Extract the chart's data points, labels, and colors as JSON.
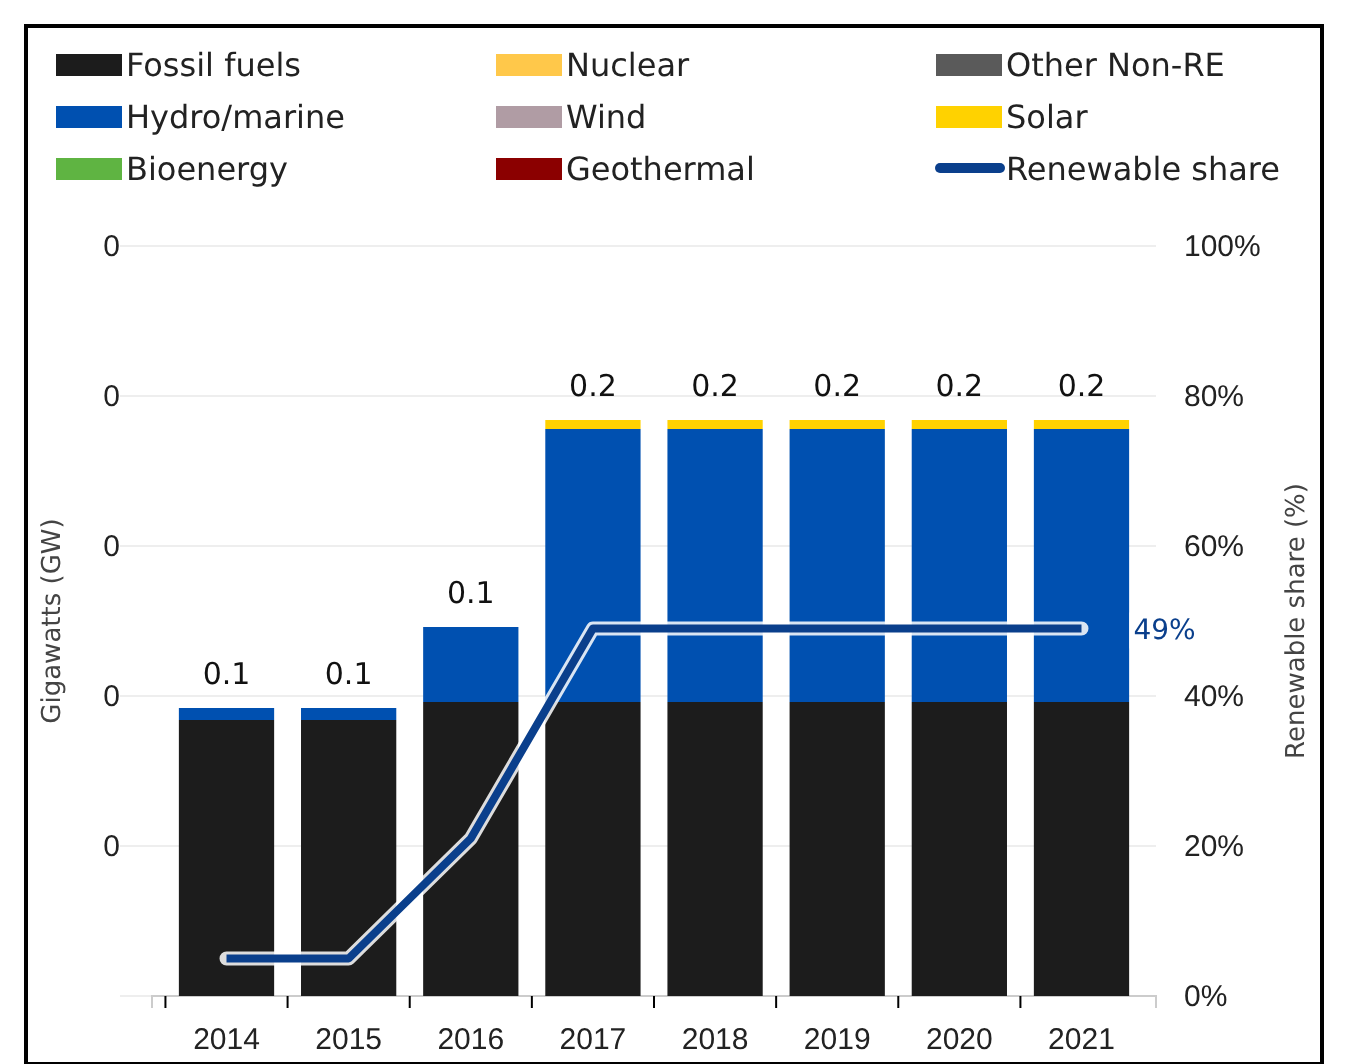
{
  "chart_data": {
    "type": "bar",
    "stacked": true,
    "categories": [
      "2014",
      "2015",
      "2016",
      "2017",
      "2018",
      "2019",
      "2020",
      "2021"
    ],
    "series": [
      {
        "name": "Fossil fuels",
        "color": "#1c1c1c",
        "values": [
          0.092,
          0.092,
          0.098,
          0.098,
          0.098,
          0.098,
          0.098,
          0.098
        ]
      },
      {
        "name": "Nuclear",
        "color": "#ffc84a",
        "values": [
          0,
          0,
          0,
          0,
          0,
          0,
          0,
          0
        ]
      },
      {
        "name": "Other Non-RE",
        "color": "#5a5a5a",
        "values": [
          0,
          0,
          0,
          0,
          0,
          0,
          0,
          0
        ]
      },
      {
        "name": "Hydro/marine",
        "color": "#0050b0",
        "values": [
          0.004,
          0.004,
          0.025,
          0.091,
          0.091,
          0.091,
          0.091,
          0.091
        ]
      },
      {
        "name": "Wind",
        "color": "#b09ca4",
        "values": [
          0,
          0,
          0,
          0,
          0,
          0,
          0,
          0
        ]
      },
      {
        "name": "Solar",
        "color": "#ffd200",
        "values": [
          0,
          0,
          0,
          0.003,
          0.003,
          0.003,
          0.003,
          0.003
        ]
      },
      {
        "name": "Bioenergy",
        "color": "#5fb442",
        "values": [
          0,
          0,
          0,
          0,
          0,
          0,
          0,
          0
        ]
      },
      {
        "name": "Geothermal",
        "color": "#8b0000",
        "values": [
          0,
          0,
          0,
          0,
          0,
          0,
          0,
          0
        ]
      },
      {
        "name": "Renewable share",
        "type": "line",
        "axis": "y2",
        "color": "#0a3f8c",
        "values": [
          5,
          5,
          21,
          49,
          49,
          49,
          49,
          49
        ],
        "value_labels": [
          null,
          null,
          null,
          null,
          null,
          null,
          null,
          "49%"
        ]
      }
    ],
    "totals": [
      "0.1",
      "0.1",
      "0.1",
      "0.2",
      "0.2",
      "0.2",
      "0.2",
      "0.2"
    ],
    "ylabel": "Gigawatts (GW)",
    "y2label": "Renewable share (%)",
    "ylim": [
      0,
      0.25
    ],
    "yticks": [
      {
        "value": 0,
        "label": null
      },
      {
        "value": 0.05,
        "label": "0"
      },
      {
        "value": 0.1,
        "label": "0"
      },
      {
        "value": 0.15,
        "label": "0"
      },
      {
        "value": 0.2,
        "label": "0"
      },
      {
        "value": 0.25,
        "label": "0"
      }
    ],
    "y2lim": [
      0,
      100
    ],
    "y2ticks": [
      {
        "value": 0,
        "label": "0%"
      },
      {
        "value": 20,
        "label": "20%"
      },
      {
        "value": 40,
        "label": "40%"
      },
      {
        "value": 60,
        "label": "60%"
      },
      {
        "value": 80,
        "label": "80%"
      },
      {
        "value": 100,
        "label": "100%"
      }
    ],
    "grid": "y",
    "legend": "top",
    "marker": "none",
    "line_style": "solid"
  }
}
